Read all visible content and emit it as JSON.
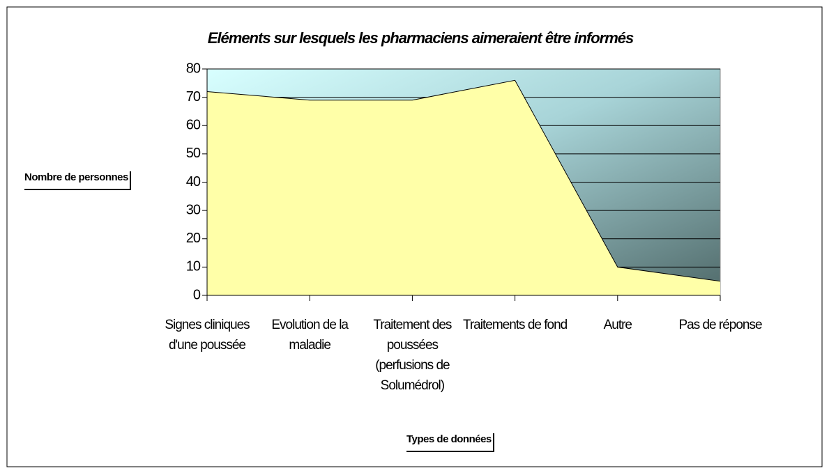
{
  "chart_data": {
    "type": "area",
    "title": "Eléments sur lesquels les pharmaciens aimeraient être informés",
    "y_label": "Nombre de personnes",
    "x_label": "Types de données",
    "categories": [
      "Signes cliniques d'une poussée",
      "Evolution de la maladie",
      "Traitement des poussées (perfusions de Solumédrol)",
      "Traitements de fond",
      "Autre",
      "Pas de réponse"
    ],
    "values": [
      72,
      69,
      69,
      76,
      10,
      5
    ],
    "color": "#ffffa8",
    "ylim": [
      0,
      80
    ],
    "yticks": [
      0,
      10,
      20,
      30,
      40,
      50,
      60,
      70,
      80
    ],
    "grid": true
  }
}
